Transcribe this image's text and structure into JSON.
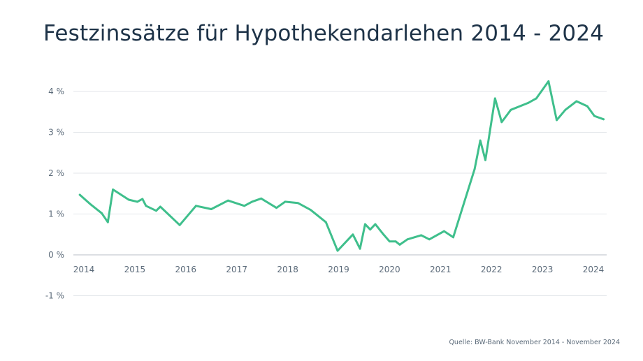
{
  "title": "Festzinssätze für Hypothekendarlehen 2014 - 2024",
  "source": "Quelle: BW-Bank November 2014 - November 2024",
  "colors": {
    "line": "#3fbf8c",
    "grid": "#e3e6ea",
    "zero_line": "#b8bfc7",
    "text": "#5c6b7a",
    "title": "#1e3348"
  },
  "chart_data": {
    "type": "line",
    "title": "Festzinssätze für Hypothekendarlehen 2014 - 2024",
    "xlabel": "",
    "ylabel": "",
    "x_ticks": [
      "2014",
      "2015",
      "2016",
      "2017",
      "2018",
      "2019",
      "2020",
      "2021",
      "2022",
      "2023",
      "2024"
    ],
    "y_ticks": [
      "-1 %",
      "0 %",
      "1 %",
      "2 %",
      "3 %",
      "4 %"
    ],
    "ylim": [
      -1,
      4
    ],
    "xlim": [
      2014,
      2024.2
    ],
    "grid": true,
    "series": [
      {
        "x": [
          2013.92,
          2014.12,
          2014.35,
          2014.47,
          2014.57,
          2014.88,
          2015.05,
          2015.15,
          2015.22,
          2015.42,
          2015.5,
          2015.88,
          2016.2,
          2016.5,
          2016.83,
          2017.15,
          2017.3,
          2017.48,
          2017.78,
          2017.95,
          2018.2,
          2018.45,
          2018.75,
          2018.98,
          2019.28,
          2019.42,
          2019.52,
          2019.62,
          2019.72,
          2019.88,
          2020.0,
          2020.12,
          2020.2,
          2020.35,
          2020.62,
          2020.78,
          2021.07,
          2021.25,
          2021.67,
          2021.78,
          2021.88,
          2022.07,
          2022.2,
          2022.38,
          2022.72,
          2022.88,
          2023.12,
          2023.28,
          2023.45,
          2023.67,
          2023.88,
          2024.02,
          2024.2
        ],
        "values": [
          1.47,
          1.25,
          1.02,
          0.8,
          1.6,
          1.35,
          1.3,
          1.37,
          1.2,
          1.08,
          1.18,
          0.73,
          1.2,
          1.12,
          1.33,
          1.2,
          1.3,
          1.38,
          1.15,
          1.3,
          1.27,
          1.1,
          0.8,
          0.1,
          0.5,
          0.15,
          0.75,
          0.62,
          0.75,
          0.5,
          0.33,
          0.33,
          0.25,
          0.38,
          0.48,
          0.38,
          0.58,
          0.43,
          2.1,
          2.8,
          2.32,
          3.83,
          3.25,
          3.55,
          3.72,
          3.83,
          4.25,
          3.3,
          3.55,
          3.76,
          3.64,
          3.4,
          3.32
        ]
      }
    ]
  }
}
